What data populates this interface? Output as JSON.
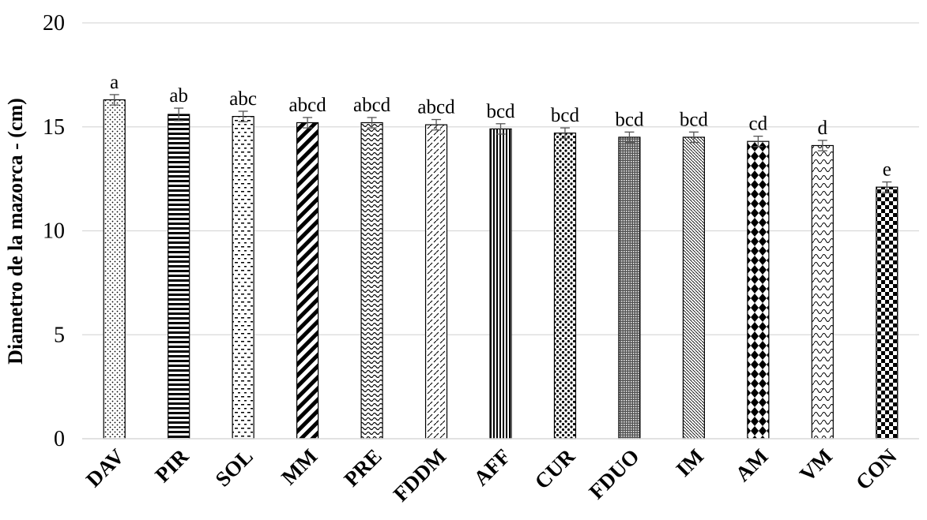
{
  "chart_data": {
    "type": "bar",
    "title": "",
    "xlabel": "",
    "ylabel": "Diametro de la mazorca - (cm)",
    "ylim": [
      0,
      20
    ],
    "yticks": [
      0,
      5,
      10,
      15,
      20
    ],
    "grid": true,
    "categories": [
      "DAV",
      "PIR",
      "SOL",
      "MM",
      "PRE",
      "FDDM",
      "AFF",
      "CUR",
      "FDUO",
      "IM",
      "AM",
      "VM",
      "CON"
    ],
    "values": [
      16.3,
      15.6,
      15.5,
      15.2,
      15.2,
      15.1,
      14.9,
      14.7,
      14.5,
      14.5,
      14.3,
      14.1,
      12.1
    ],
    "errors": [
      0.25,
      0.3,
      0.25,
      0.25,
      0.25,
      0.25,
      0.25,
      0.25,
      0.25,
      0.25,
      0.25,
      0.25,
      0.25
    ],
    "significance_letters": [
      "a",
      "ab",
      "abc",
      "abcd",
      "abcd",
      "abcd",
      "bcd",
      "bcd",
      "bcd",
      "bcd",
      "cd",
      "d",
      "e"
    ],
    "patterns": [
      "dots",
      "horizontal-stripes",
      "dashes",
      "diagonal-stripes",
      "waves",
      "dashed-diagonal",
      "vertical-stripes",
      "large-dots",
      "dense-grid",
      "fine-diagonal",
      "diamonds",
      "scallops",
      "checkerboard"
    ]
  }
}
